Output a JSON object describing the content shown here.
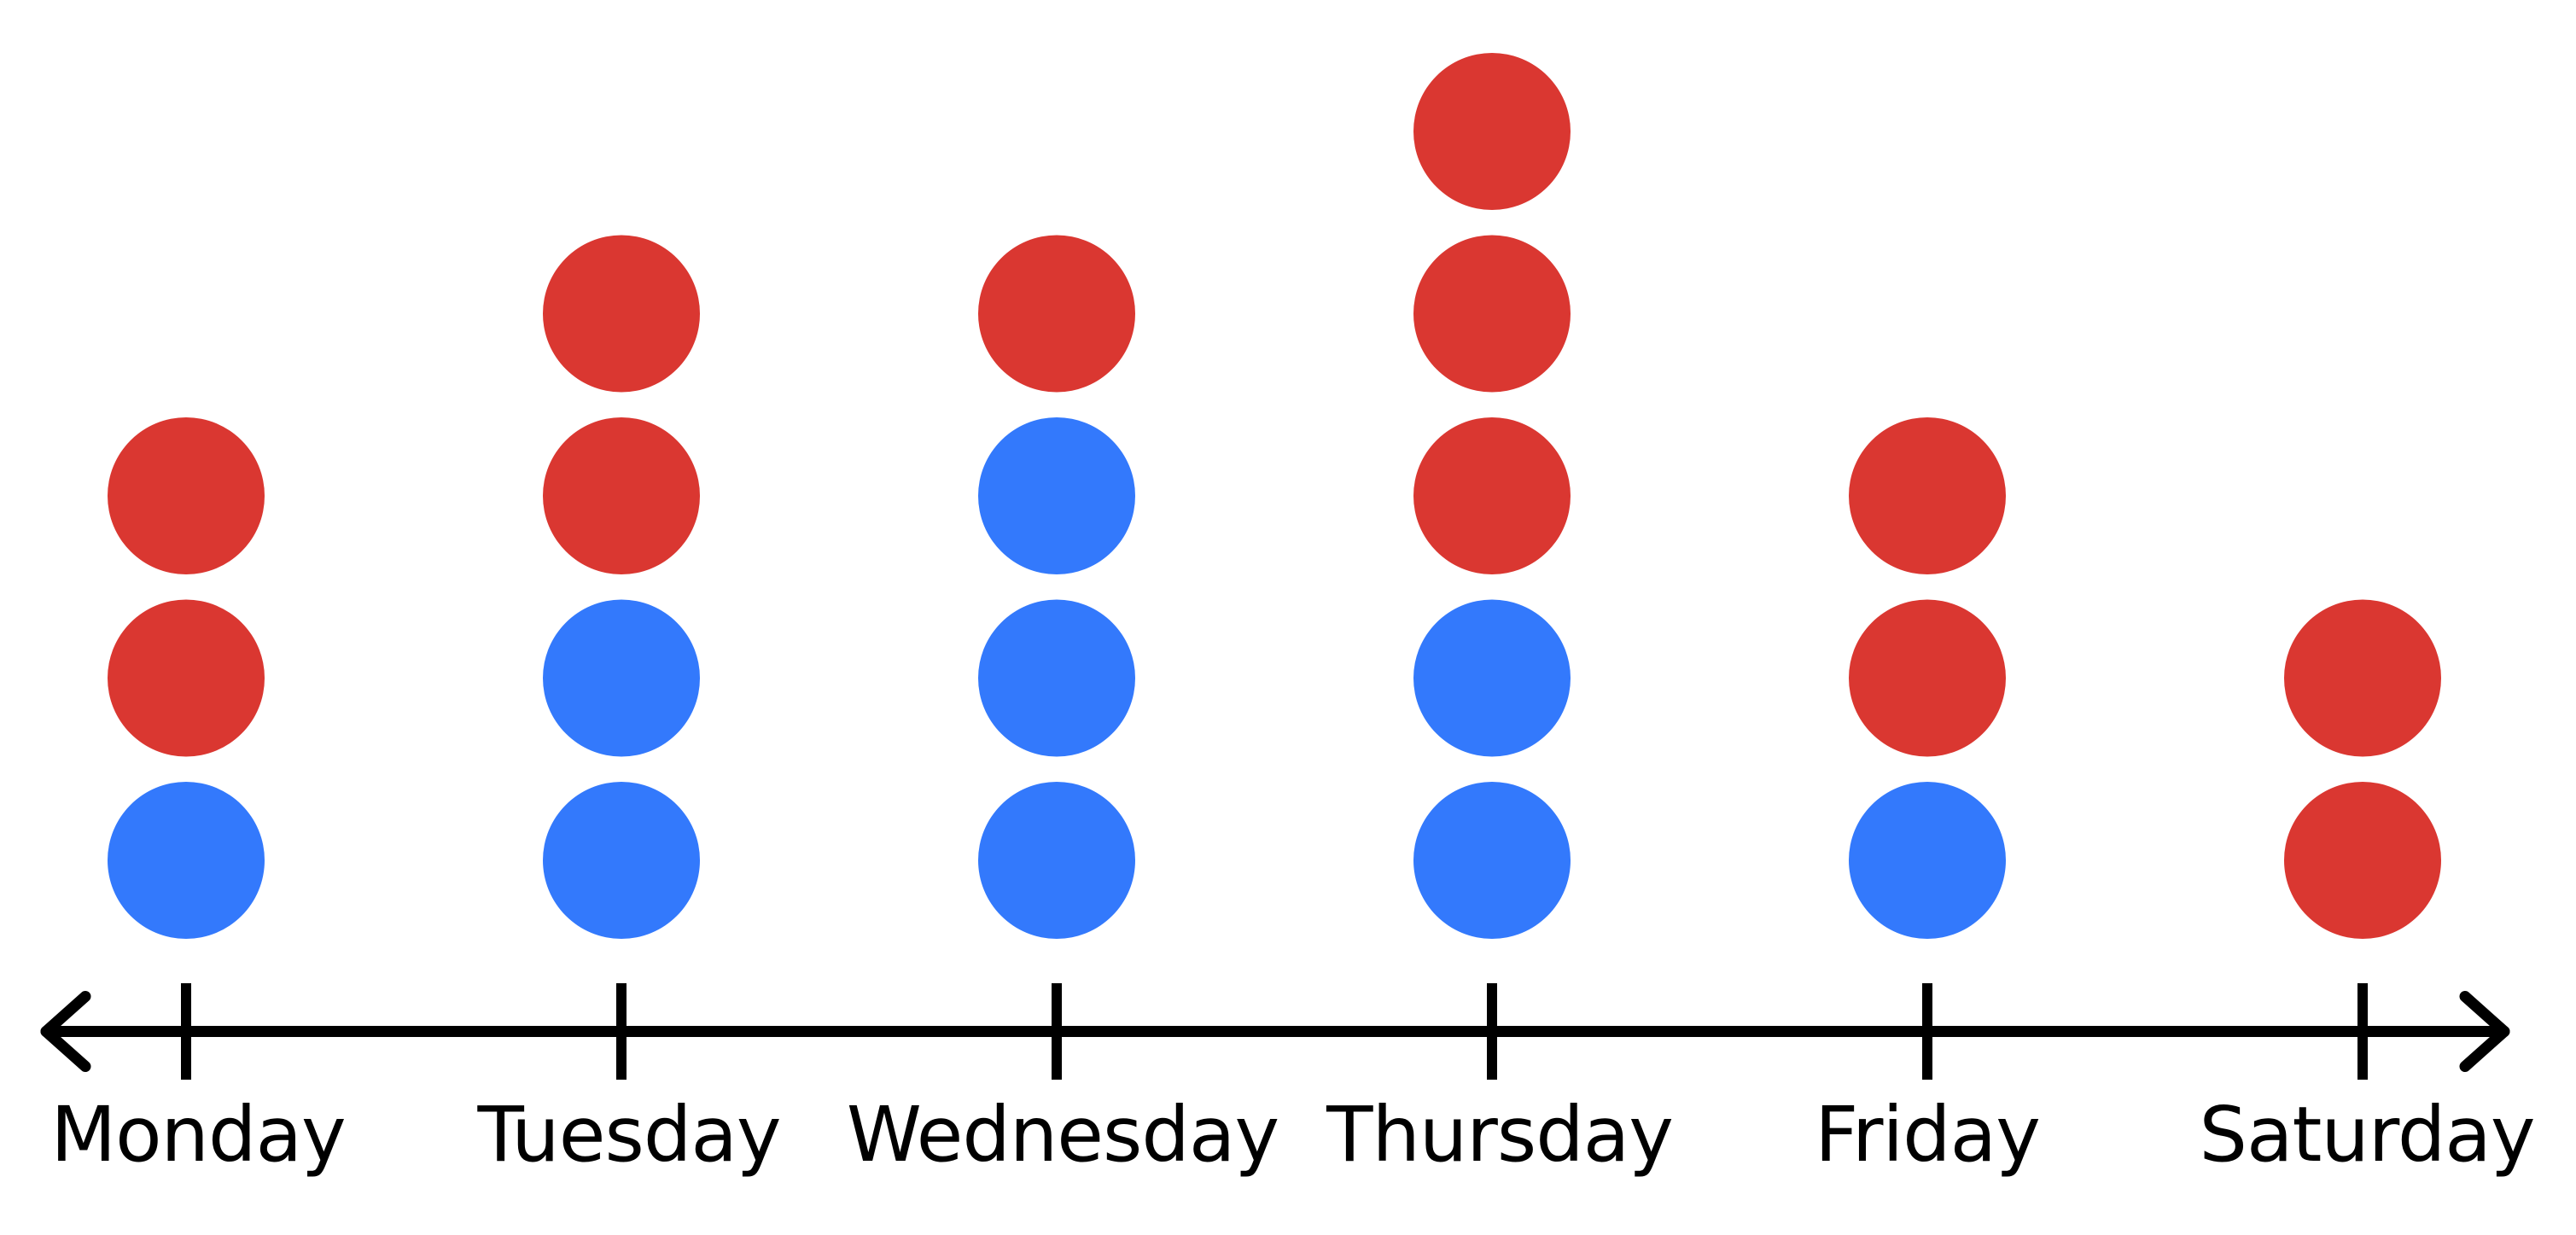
{
  "chart_data": {
    "type": "scatter",
    "subtype": "dot-plot",
    "title": "",
    "xlabel": "",
    "ylabel": "",
    "categories": [
      "Monday",
      "Tuesday",
      "Wednesday",
      "Thursday",
      "Friday",
      "Saturday"
    ],
    "columns": [
      {
        "label": "Monday",
        "dots": [
          "blue",
          "red",
          "red"
        ]
      },
      {
        "label": "Tuesday",
        "dots": [
          "blue",
          "blue",
          "red",
          "red"
        ]
      },
      {
        "label": "Wednesday",
        "dots": [
          "blue",
          "blue",
          "blue",
          "red"
        ]
      },
      {
        "label": "Thursday",
        "dots": [
          "blue",
          "blue",
          "red",
          "red",
          "red"
        ]
      },
      {
        "label": "Friday",
        "dots": [
          "blue",
          "red",
          "red"
        ]
      },
      {
        "label": "Saturday",
        "dots": [
          "red",
          "red"
        ]
      }
    ],
    "series": [
      {
        "name": "blue",
        "values": [
          1,
          2,
          3,
          2,
          1,
          0
        ]
      },
      {
        "name": "red",
        "values": [
          2,
          2,
          1,
          3,
          2,
          2
        ]
      }
    ],
    "totals": [
      3,
      4,
      4,
      5,
      3,
      2
    ],
    "stacking": "blue dots below red dots",
    "colors": {
      "blue": "#3379fc",
      "red": "#da3731",
      "axis": "#000000",
      "background": "#ffffff"
    },
    "axis": {
      "orientation": "horizontal",
      "arrowheads": "both-ends",
      "tick_count": 6
    },
    "legend": {
      "visible": false
    },
    "grid": false
  }
}
